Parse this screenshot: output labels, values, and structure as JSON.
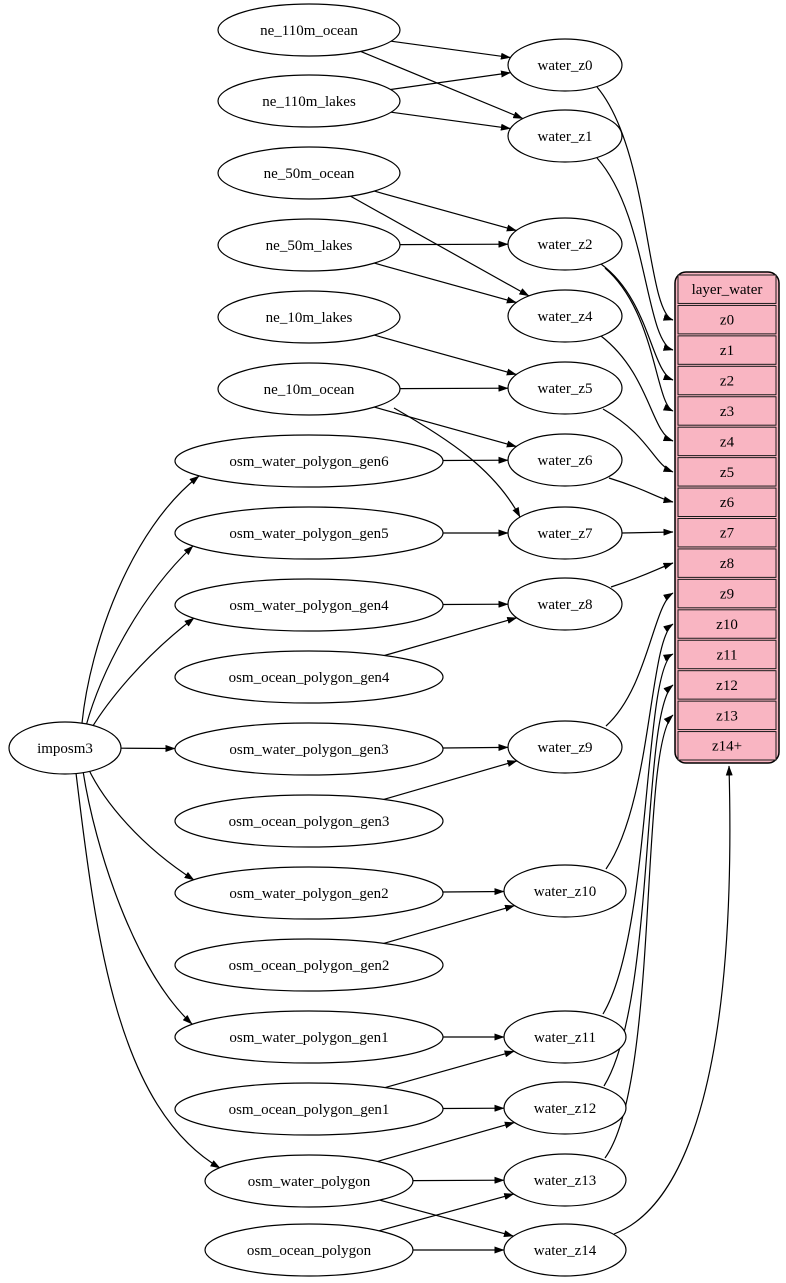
{
  "colors": {
    "background": "#ffffff",
    "node_fill": "#ffffff",
    "node_border": "#000000",
    "edge": "#000000",
    "table_fill": "#f9b5c2",
    "table_border": "#000000",
    "cell_border": "#1b1b1b",
    "text": "#000000"
  },
  "nodes": [
    {
      "id": "imposm3",
      "label": "imposm3",
      "kind": "source"
    },
    {
      "id": "ne_110m_ocean",
      "label": "ne_110m_ocean",
      "kind": "source"
    },
    {
      "id": "ne_110m_lakes",
      "label": "ne_110m_lakes",
      "kind": "source"
    },
    {
      "id": "ne_50m_ocean",
      "label": "ne_50m_ocean",
      "kind": "source"
    },
    {
      "id": "ne_50m_lakes",
      "label": "ne_50m_lakes",
      "kind": "source"
    },
    {
      "id": "ne_10m_lakes",
      "label": "ne_10m_lakes",
      "kind": "source"
    },
    {
      "id": "ne_10m_ocean",
      "label": "ne_10m_ocean",
      "kind": "source"
    },
    {
      "id": "osm_water_polygon_gen6",
      "label": "osm_water_polygon_gen6",
      "kind": "table"
    },
    {
      "id": "osm_water_polygon_gen5",
      "label": "osm_water_polygon_gen5",
      "kind": "table"
    },
    {
      "id": "osm_water_polygon_gen4",
      "label": "osm_water_polygon_gen4",
      "kind": "table"
    },
    {
      "id": "osm_ocean_polygon_gen4",
      "label": "osm_ocean_polygon_gen4",
      "kind": "table"
    },
    {
      "id": "osm_water_polygon_gen3",
      "label": "osm_water_polygon_gen3",
      "kind": "table"
    },
    {
      "id": "osm_ocean_polygon_gen3",
      "label": "osm_ocean_polygon_gen3",
      "kind": "table"
    },
    {
      "id": "osm_water_polygon_gen2",
      "label": "osm_water_polygon_gen2",
      "kind": "table"
    },
    {
      "id": "osm_ocean_polygon_gen2",
      "label": "osm_ocean_polygon_gen2",
      "kind": "table"
    },
    {
      "id": "osm_water_polygon_gen1",
      "label": "osm_water_polygon_gen1",
      "kind": "table"
    },
    {
      "id": "osm_ocean_polygon_gen1",
      "label": "osm_ocean_polygon_gen1",
      "kind": "table"
    },
    {
      "id": "osm_water_polygon",
      "label": "osm_water_polygon",
      "kind": "table"
    },
    {
      "id": "osm_ocean_polygon",
      "label": "osm_ocean_polygon",
      "kind": "table"
    },
    {
      "id": "water_z0",
      "label": "water_z0",
      "kind": "view"
    },
    {
      "id": "water_z1",
      "label": "water_z1",
      "kind": "view"
    },
    {
      "id": "water_z2",
      "label": "water_z2",
      "kind": "view"
    },
    {
      "id": "water_z4",
      "label": "water_z4",
      "kind": "view"
    },
    {
      "id": "water_z5",
      "label": "water_z5",
      "kind": "view"
    },
    {
      "id": "water_z6",
      "label": "water_z6",
      "kind": "view"
    },
    {
      "id": "water_z7",
      "label": "water_z7",
      "kind": "view"
    },
    {
      "id": "water_z8",
      "label": "water_z8",
      "kind": "view"
    },
    {
      "id": "water_z9",
      "label": "water_z9",
      "kind": "view"
    },
    {
      "id": "water_z10",
      "label": "water_z10",
      "kind": "view"
    },
    {
      "id": "water_z11",
      "label": "water_z11",
      "kind": "view"
    },
    {
      "id": "water_z12",
      "label": "water_z12",
      "kind": "view"
    },
    {
      "id": "water_z13",
      "label": "water_z13",
      "kind": "view"
    },
    {
      "id": "water_z14",
      "label": "water_z14",
      "kind": "view"
    }
  ],
  "table": {
    "id": "layer_water",
    "title": "layer_water",
    "rows": [
      "z0",
      "z1",
      "z2",
      "z3",
      "z4",
      "z5",
      "z6",
      "z7",
      "z8",
      "z9",
      "z10",
      "z11",
      "z12",
      "z13",
      "z14+"
    ]
  },
  "edges": [
    {
      "from": "imposm3",
      "to": "osm_water_polygon_gen6"
    },
    {
      "from": "imposm3",
      "to": "osm_water_polygon_gen5"
    },
    {
      "from": "imposm3",
      "to": "osm_water_polygon_gen4"
    },
    {
      "from": "imposm3",
      "to": "osm_water_polygon_gen3"
    },
    {
      "from": "imposm3",
      "to": "osm_water_polygon_gen2"
    },
    {
      "from": "imposm3",
      "to": "osm_water_polygon_gen1"
    },
    {
      "from": "imposm3",
      "to": "osm_water_polygon"
    },
    {
      "from": "ne_110m_ocean",
      "to": "water_z0"
    },
    {
      "from": "ne_110m_ocean",
      "to": "water_z1"
    },
    {
      "from": "ne_110m_lakes",
      "to": "water_z0"
    },
    {
      "from": "ne_110m_lakes",
      "to": "water_z1"
    },
    {
      "from": "ne_50m_ocean",
      "to": "water_z2"
    },
    {
      "from": "ne_50m_ocean",
      "to": "water_z4"
    },
    {
      "from": "ne_50m_lakes",
      "to": "water_z2"
    },
    {
      "from": "ne_50m_lakes",
      "to": "water_z4"
    },
    {
      "from": "ne_10m_lakes",
      "to": "water_z5"
    },
    {
      "from": "ne_10m_ocean",
      "to": "water_z5"
    },
    {
      "from": "ne_10m_ocean",
      "to": "water_z6"
    },
    {
      "from": "ne_10m_ocean",
      "to": "water_z7"
    },
    {
      "from": "osm_water_polygon_gen6",
      "to": "water_z6"
    },
    {
      "from": "osm_water_polygon_gen5",
      "to": "water_z7"
    },
    {
      "from": "osm_water_polygon_gen4",
      "to": "water_z8"
    },
    {
      "from": "osm_ocean_polygon_gen4",
      "to": "water_z8"
    },
    {
      "from": "osm_water_polygon_gen3",
      "to": "water_z9"
    },
    {
      "from": "osm_ocean_polygon_gen3",
      "to": "water_z9"
    },
    {
      "from": "osm_water_polygon_gen2",
      "to": "water_z10"
    },
    {
      "from": "osm_ocean_polygon_gen2",
      "to": "water_z10"
    },
    {
      "from": "osm_water_polygon_gen1",
      "to": "water_z11"
    },
    {
      "from": "osm_ocean_polygon_gen1",
      "to": "water_z11"
    },
    {
      "from": "osm_ocean_polygon_gen1",
      "to": "water_z12"
    },
    {
      "from": "osm_water_polygon",
      "to": "water_z12"
    },
    {
      "from": "osm_water_polygon",
      "to": "water_z13"
    },
    {
      "from": "osm_water_polygon",
      "to": "water_z14"
    },
    {
      "from": "osm_ocean_polygon",
      "to": "water_z13"
    },
    {
      "from": "osm_ocean_polygon",
      "to": "water_z14"
    },
    {
      "from": "water_z0",
      "to": "layer_water:z0"
    },
    {
      "from": "water_z1",
      "to": "layer_water:z1"
    },
    {
      "from": "water_z2",
      "to": "layer_water:z2"
    },
    {
      "from": "water_z2",
      "to": "layer_water:z3"
    },
    {
      "from": "water_z4",
      "to": "layer_water:z4"
    },
    {
      "from": "water_z5",
      "to": "layer_water:z5"
    },
    {
      "from": "water_z6",
      "to": "layer_water:z6"
    },
    {
      "from": "water_z7",
      "to": "layer_water:z7"
    },
    {
      "from": "water_z8",
      "to": "layer_water:z8"
    },
    {
      "from": "water_z9",
      "to": "layer_water:z9"
    },
    {
      "from": "water_z10",
      "to": "layer_water:z10"
    },
    {
      "from": "water_z11",
      "to": "layer_water:z11"
    },
    {
      "from": "water_z12",
      "to": "layer_water:z12"
    },
    {
      "from": "water_z13",
      "to": "layer_water:z13"
    },
    {
      "from": "water_z14",
      "to": "layer_water:z14+"
    }
  ]
}
